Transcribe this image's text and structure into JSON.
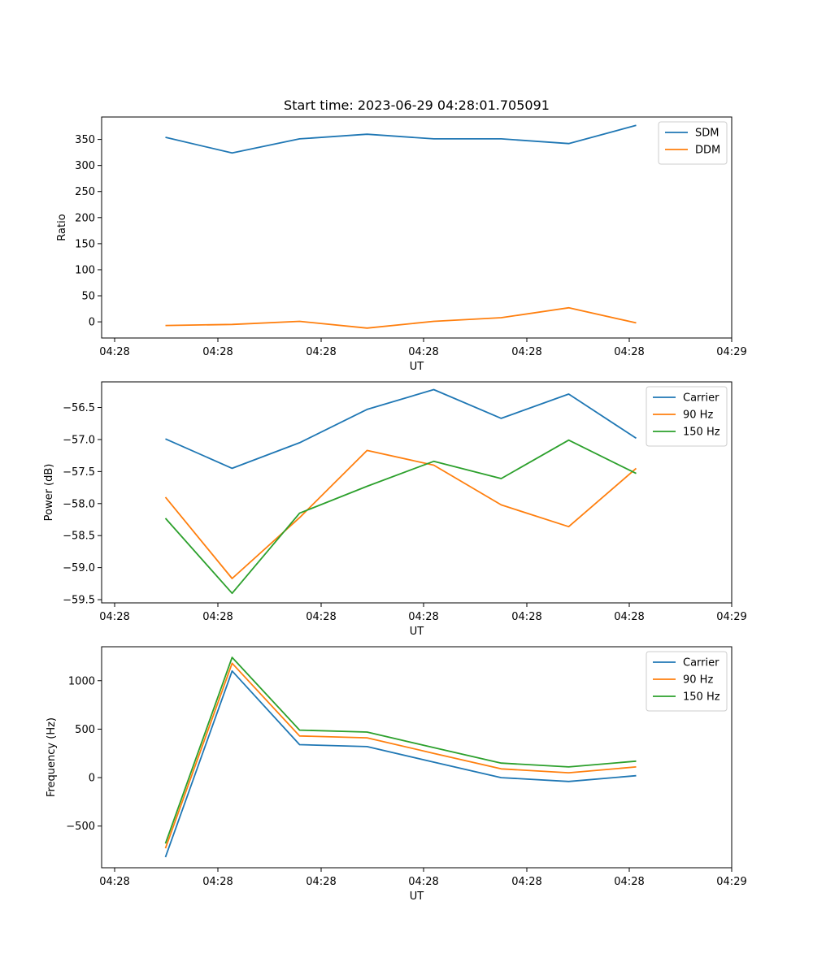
{
  "chart_data": [
    {
      "type": "line",
      "title": "Start time: 2023-06-29 04:28:01.705091",
      "xlabel": "UT",
      "ylabel": "Ratio",
      "x_tick_labels": [
        "04:28",
        "04:28",
        "04:28",
        "04:28",
        "04:28",
        "04:28",
        "04:28",
        "04:29"
      ],
      "yticks": [
        0,
        50,
        100,
        150,
        200,
        250,
        300,
        350
      ],
      "ylim": [
        -31,
        393
      ],
      "legend_position": "upper right",
      "grid": false,
      "series": [
        {
          "name": "SDM",
          "color": "#1f77b4",
          "values": [
            354,
            324,
            351,
            360,
            351,
            351,
            342,
            377
          ]
        },
        {
          "name": "DDM",
          "color": "#ff7f0e",
          "values": [
            -7,
            -5,
            1,
            -12,
            1,
            8,
            27,
            -2
          ]
        }
      ]
    },
    {
      "type": "line",
      "title": "",
      "xlabel": "UT",
      "ylabel": "Power (dB)",
      "x_tick_labels": [
        "04:28",
        "04:28",
        "04:28",
        "04:28",
        "04:28",
        "04:28",
        "04:28",
        "04:29"
      ],
      "yticks": [
        -59.5,
        -59.0,
        -58.5,
        -58.0,
        -57.5,
        -57.0,
        -56.5
      ],
      "ytick_labels": [
        "−59.5",
        "−59.0",
        "−58.5",
        "−58.0",
        "−57.5",
        "−57.0",
        "−56.5"
      ],
      "ylim": [
        -59.55,
        -56.1
      ],
      "legend_position": "upper right",
      "grid": false,
      "series": [
        {
          "name": "Carrier",
          "color": "#1f77b4",
          "values": [
            -56.99,
            -57.45,
            -57.05,
            -56.53,
            -56.22,
            -56.67,
            -56.29,
            -56.98
          ]
        },
        {
          "name": "90 Hz",
          "color": "#ff7f0e",
          "values": [
            -57.9,
            -59.17,
            -58.22,
            -57.17,
            -57.4,
            -58.02,
            -58.36,
            -57.45
          ]
        },
        {
          "name": "150 Hz",
          "color": "#2ca02c",
          "values": [
            -58.23,
            -59.4,
            -58.15,
            -57.73,
            -57.34,
            -57.61,
            -57.01,
            -57.53
          ]
        }
      ]
    },
    {
      "type": "line",
      "title": "",
      "xlabel": "UT",
      "ylabel": "Frequency (Hz)",
      "x_tick_labels": [
        "04:28",
        "04:28",
        "04:28",
        "04:28",
        "04:28",
        "04:28",
        "04:28",
        "04:29"
      ],
      "yticks": [
        -500,
        0,
        500,
        1000
      ],
      "ytick_labels": [
        "−500",
        "0",
        "500",
        "1000"
      ],
      "ylim": [
        -930,
        1350
      ],
      "legend_position": "upper right",
      "grid": false,
      "series": [
        {
          "name": "Carrier",
          "color": "#1f77b4",
          "values": [
            -820,
            1100,
            340,
            320,
            160,
            0,
            -40,
            20
          ]
        },
        {
          "name": "90 Hz",
          "color": "#ff7f0e",
          "values": [
            -730,
            1180,
            430,
            410,
            250,
            90,
            50,
            110
          ]
        },
        {
          "name": "150 Hz",
          "color": "#2ca02c",
          "values": [
            -680,
            1240,
            490,
            470,
            310,
            150,
            110,
            170
          ]
        }
      ]
    }
  ]
}
